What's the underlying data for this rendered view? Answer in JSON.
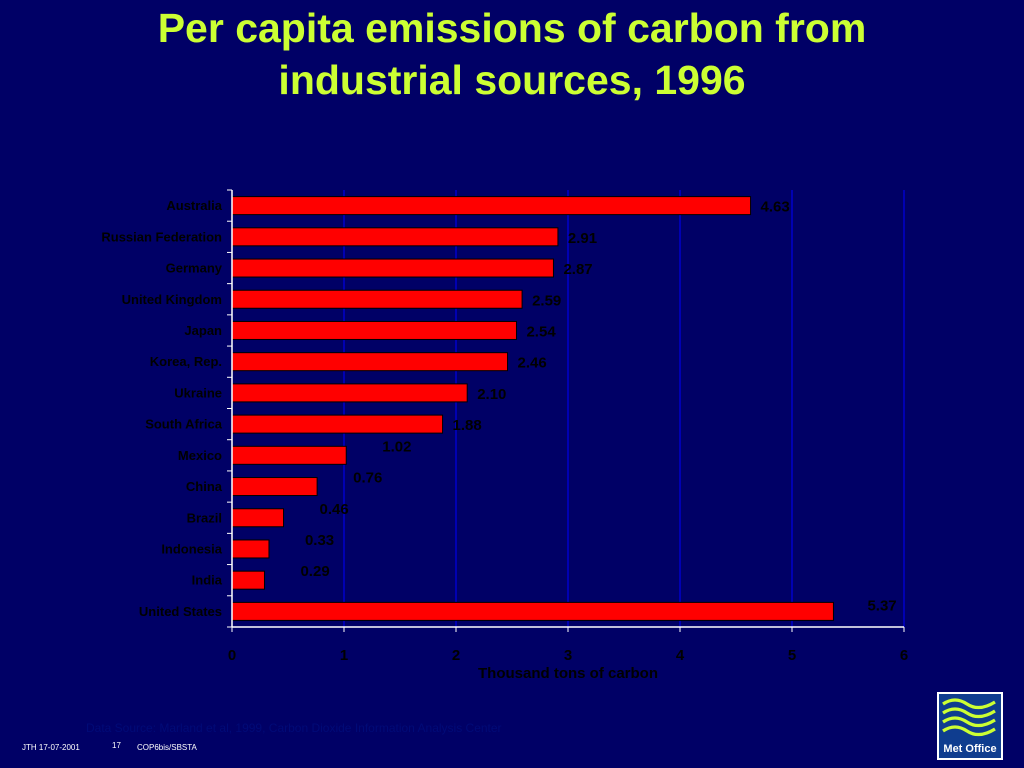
{
  "title_line1": "Per capita emissions of carbon from",
  "title_line2": "industrial sources, 1996",
  "source": "Data Source: Marland et al, 1999, Carbon Dioxide Information Analysis Center",
  "footer": {
    "author_date": "JTH 17-07-2001",
    "page": "17",
    "event": "COP6bis/SBSTA"
  },
  "logo_text": "Met Office",
  "colors": {
    "background": "#000066",
    "title": "#ccff33",
    "bar": "#ff0000",
    "text": "#000000",
    "grid": "#0000cc"
  },
  "chart_data": {
    "type": "bar",
    "orientation": "horizontal",
    "categories": [
      "Australia",
      "Russian Federation",
      "Germany",
      "United Kingdom",
      "Japan",
      "Korea, Rep.",
      "Ukraine",
      "South Africa",
      "Mexico",
      "China",
      "Brazil",
      "Indonesia",
      "India",
      "United States"
    ],
    "values": [
      4.63,
      2.91,
      2.87,
      2.59,
      2.54,
      2.46,
      2.1,
      1.88,
      1.02,
      0.76,
      0.46,
      0.33,
      0.29,
      5.37
    ],
    "value_labels": [
      "4.63",
      "2.91",
      "2.87",
      "2.59",
      "2.54",
      "2.46",
      "2.10",
      "1.88",
      "1.02",
      "0.76",
      "0.46",
      "0.33",
      "0.29",
      "5.37"
    ],
    "xlabel": "Thousand tons of carbon",
    "ylabel": "",
    "xlim": [
      0,
      6
    ],
    "xticks": [
      "0",
      "1",
      "2",
      "3",
      "4",
      "5",
      "6"
    ],
    "grid": "vertical",
    "legend": "none"
  }
}
